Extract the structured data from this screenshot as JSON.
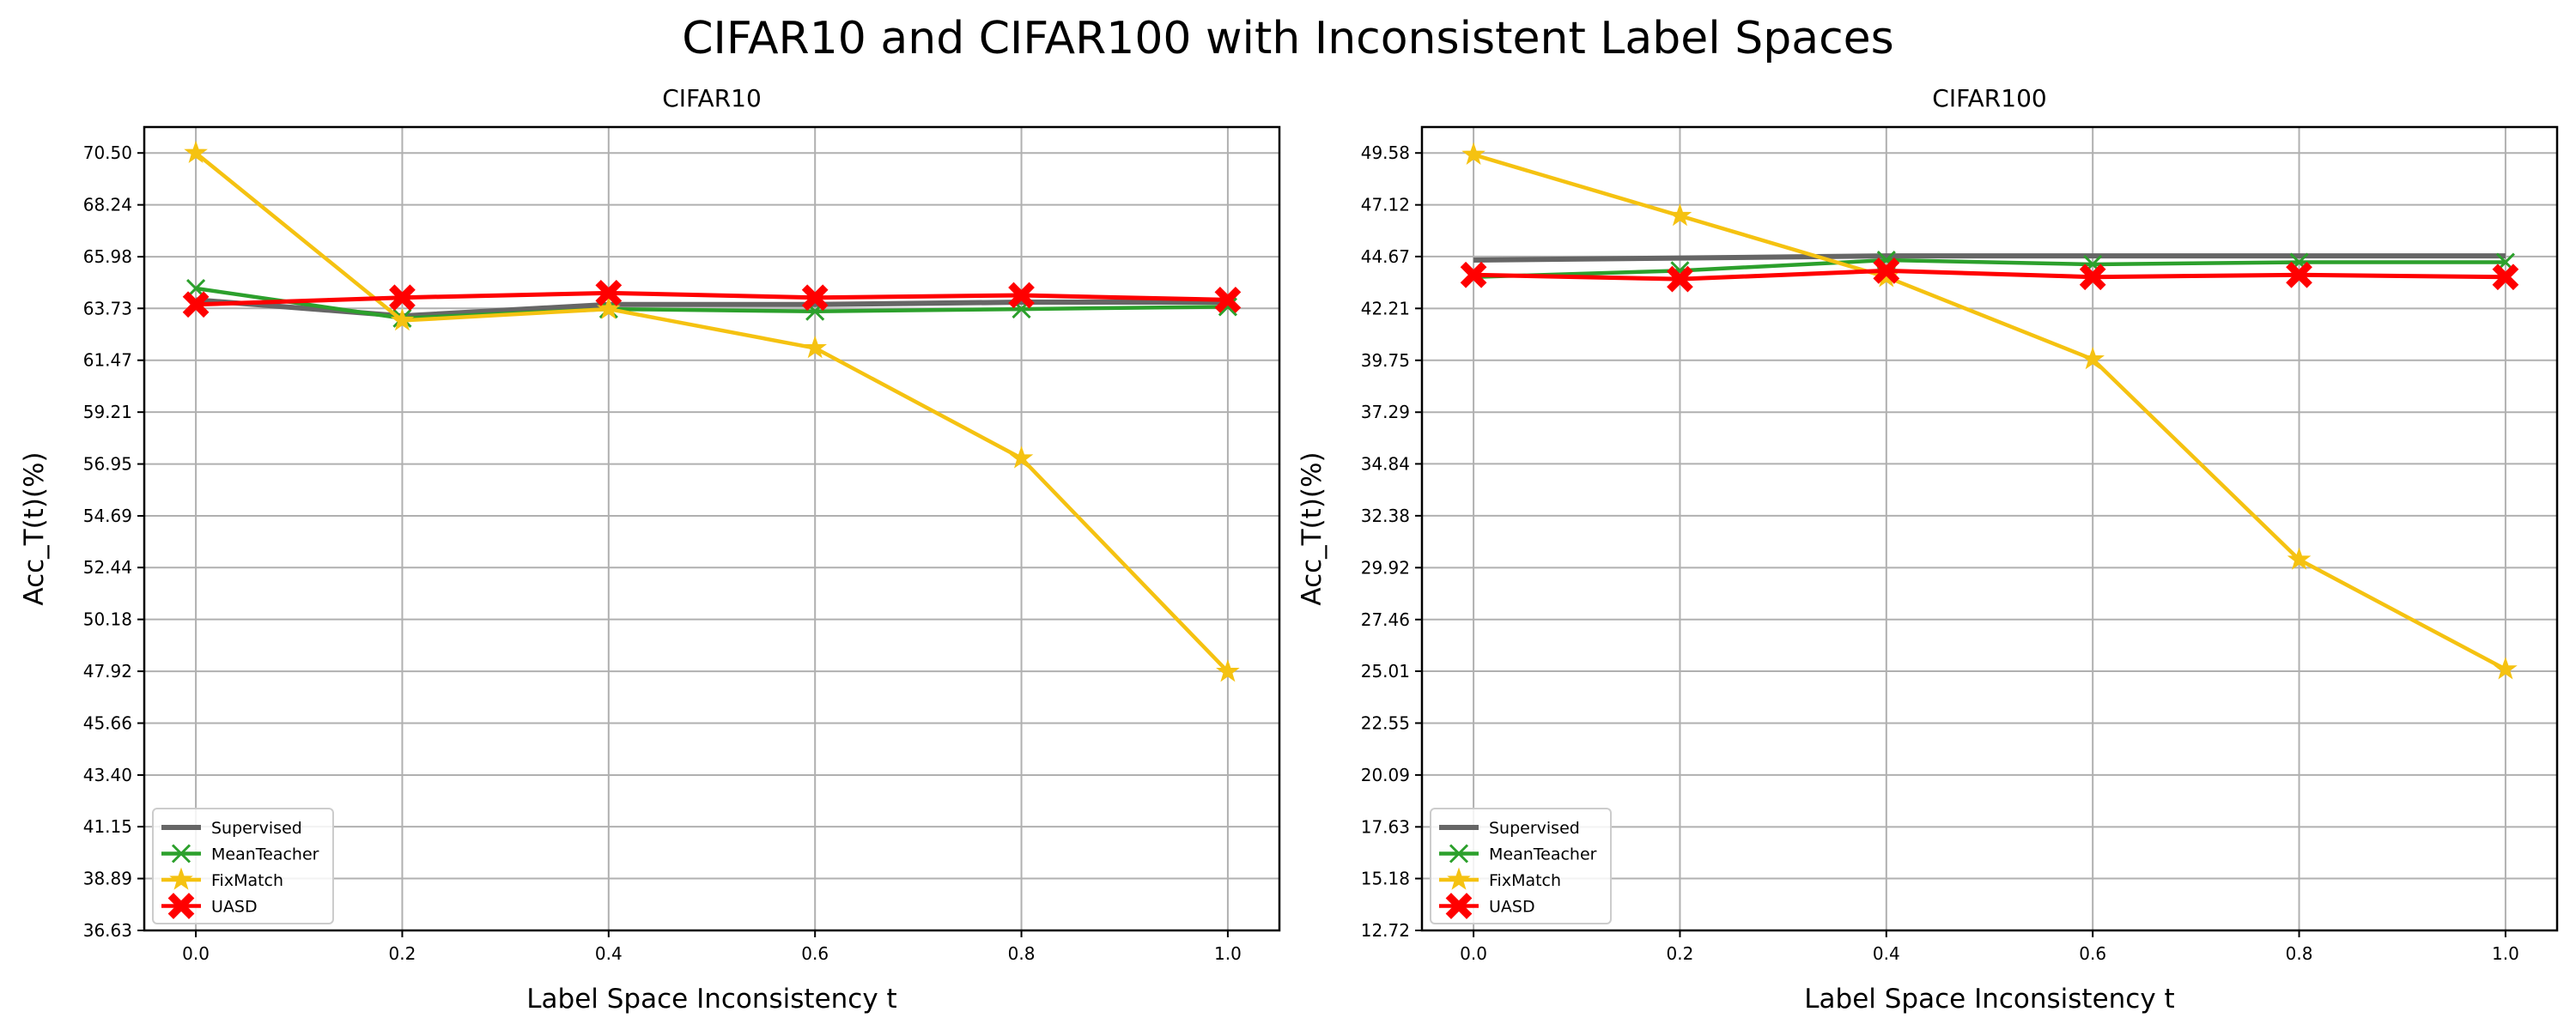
{
  "figure": {
    "suptitle": "CIFAR10 and CIFAR100 with Inconsistent Label Spaces",
    "series_colors": {
      "Supervised": "#666666",
      "MeanTeacher": "#2ca02c",
      "FixMatch": "#f5c211",
      "UASD": "#ff0000"
    },
    "series_markers": {
      "Supervised": "none",
      "MeanTeacher": "x",
      "FixMatch": "star",
      "UASD": "filled-x"
    }
  },
  "chart_data": [
    {
      "type": "line",
      "title": "CIFAR10",
      "xlabel": "Label Space Inconsistency t",
      "ylabel": "Acc_T(t)(%)",
      "x": [
        0.0,
        0.2,
        0.4,
        0.6,
        0.8,
        1.0
      ],
      "x_tick_labels": [
        "0.0",
        "0.2",
        "0.4",
        "0.6",
        "0.8",
        "1.0"
      ],
      "xlim": [
        -0.05,
        1.05
      ],
      "ylim": [
        36.63,
        71.63
      ],
      "y_tick_labels": [
        "36.63",
        "38.89",
        "41.15",
        "43.40",
        "45.66",
        "47.92",
        "50.18",
        "52.44",
        "54.69",
        "56.95",
        "59.21",
        "61.47",
        "63.73",
        "65.98",
        "68.24",
        "70.50"
      ],
      "grid": true,
      "legend_position": "lower left",
      "series": [
        {
          "name": "Supervised",
          "values": [
            64.1,
            63.4,
            63.9,
            63.9,
            64.0,
            64.0
          ]
        },
        {
          "name": "MeanTeacher",
          "values": [
            64.6,
            63.3,
            63.7,
            63.6,
            63.7,
            63.8
          ]
        },
        {
          "name": "FixMatch",
          "values": [
            70.5,
            63.2,
            63.7,
            62.0,
            57.2,
            47.9
          ]
        },
        {
          "name": "UASD",
          "values": [
            63.9,
            64.2,
            64.4,
            64.2,
            64.3,
            64.1
          ]
        }
      ]
    },
    {
      "type": "line",
      "title": "CIFAR100",
      "xlabel": "Label Space Inconsistency t",
      "ylabel": "Acc_T(t)(%)",
      "x": [
        0.0,
        0.2,
        0.4,
        0.6,
        0.8,
        1.0
      ],
      "x_tick_labels": [
        "0.0",
        "0.2",
        "0.4",
        "0.6",
        "0.8",
        "1.0"
      ],
      "xlim": [
        -0.05,
        1.05
      ],
      "ylim": [
        12.72,
        50.81
      ],
      "y_tick_labels": [
        "12.72",
        "15.18",
        "17.63",
        "20.09",
        "22.55",
        "25.01",
        "27.46",
        "29.92",
        "32.38",
        "34.84",
        "37.29",
        "39.75",
        "42.21",
        "44.67",
        "47.12",
        "49.58"
      ],
      "grid": true,
      "legend_position": "lower left",
      "series": [
        {
          "name": "Supervised",
          "values": [
            44.5,
            44.6,
            44.7,
            44.7,
            44.7,
            44.7
          ]
        },
        {
          "name": "MeanTeacher",
          "values": [
            43.7,
            44.0,
            44.5,
            44.3,
            44.4,
            44.4
          ]
        },
        {
          "name": "FixMatch",
          "values": [
            49.5,
            46.6,
            43.7,
            39.8,
            30.3,
            25.1
          ]
        },
        {
          "name": "UASD",
          "values": [
            43.8,
            43.6,
            44.0,
            43.7,
            43.8,
            43.7
          ]
        }
      ]
    }
  ]
}
